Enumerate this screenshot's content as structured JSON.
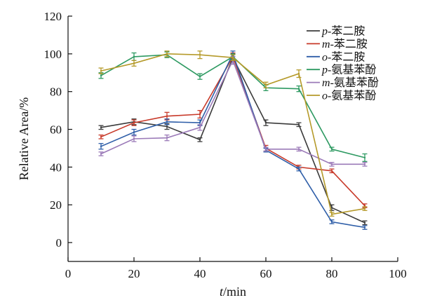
{
  "chart_data": {
    "type": "line",
    "title": "",
    "xlabel_italic": "t",
    "xlabel_unit": "/min",
    "ylabel": "Relative Area/%",
    "xlim": [
      0,
      100
    ],
    "ylim": [
      -10,
      120
    ],
    "xticks": [
      0,
      20,
      40,
      60,
      80,
      100
    ],
    "yticks": [
      0,
      20,
      40,
      60,
      80,
      100,
      120
    ],
    "grid": false,
    "legend_position": "top-right",
    "x": [
      10,
      20,
      30,
      40,
      50,
      60,
      70,
      80,
      90
    ],
    "series": [
      {
        "name": "p-苯二胺",
        "name_prefix": "p",
        "name_suffix": "-苯二胺",
        "color": "#3b3b3b",
        "values": [
          61,
          64,
          61.5,
          54.5,
          98,
          63.5,
          62.5,
          18.5,
          10.5
        ],
        "errors": [
          1,
          1.5,
          1.5,
          1,
          2,
          1.5,
          1,
          1.5,
          1
        ]
      },
      {
        "name": "m-苯二胺",
        "name_prefix": "m",
        "name_suffix": "-苯二胺",
        "color": "#c83a2a",
        "values": [
          56,
          63.5,
          67,
          68,
          98.5,
          50,
          40,
          38,
          19.5
        ],
        "errors": [
          1,
          1.5,
          2,
          2,
          2,
          1.5,
          1,
          1,
          1
        ]
      },
      {
        "name": "o-苯二胺",
        "name_prefix": "o",
        "name_suffix": "-苯二胺",
        "color": "#2e5ea8",
        "values": [
          51,
          58.5,
          64,
          63.5,
          100,
          49,
          39,
          11,
          8
        ],
        "errors": [
          1.5,
          1.5,
          1.5,
          1.5,
          1.5,
          1,
          1,
          1,
          1
        ]
      },
      {
        "name": "p-氨基苯酚",
        "name_prefix": "p",
        "name_suffix": "-氨基苯酚",
        "color": "#2e9a62",
        "values": [
          88.5,
          98.5,
          99.5,
          88,
          98.5,
          82,
          81.5,
          49.5,
          45
        ],
        "errors": [
          1.5,
          2,
          1.5,
          1.5,
          1.5,
          1.5,
          1.5,
          1,
          2
        ]
      },
      {
        "name": "m-氨基苯酚",
        "name_prefix": "m",
        "name_suffix": "-氨基苯酚",
        "color": "#9b7ab8",
        "values": [
          47,
          55,
          55.5,
          61,
          96.5,
          49.5,
          49.5,
          41.5,
          41.5
        ],
        "errors": [
          1,
          1.5,
          1.5,
          1.5,
          2,
          1,
          1,
          1,
          1
        ]
      },
      {
        "name": "o-氨基苯酚",
        "name_prefix": "o",
        "name_suffix": "-氨基苯酚",
        "color": "#b59a2a",
        "values": [
          91,
          95,
          100,
          99.5,
          98,
          83.5,
          89.5,
          15,
          18
        ],
        "errors": [
          1.5,
          1.5,
          1.5,
          2,
          1.5,
          1.5,
          2,
          1,
          1
        ]
      }
    ]
  }
}
